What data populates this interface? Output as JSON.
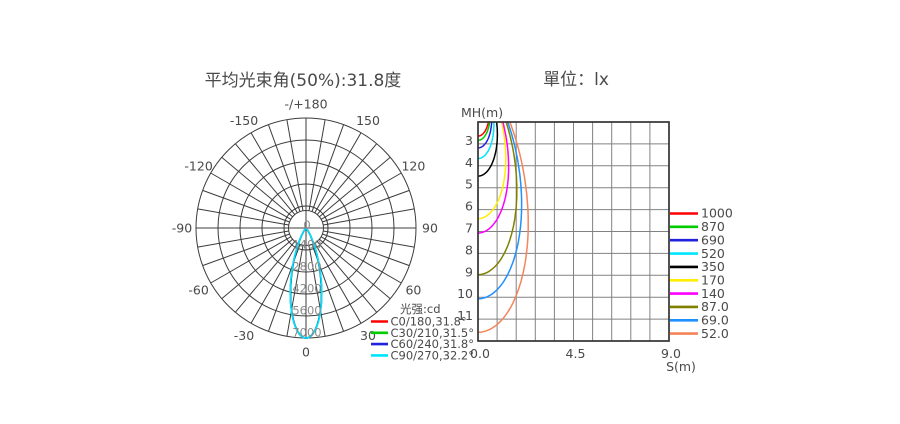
{
  "chart_data": [
    {
      "type": "line",
      "subtype": "polar-luminous-intensity-distribution",
      "title": "平均光束角(50%):31.8度",
      "units": "cd",
      "legend_title": "光强:cd",
      "radial_axis": {
        "max": 7000,
        "ticks": [
          0,
          1400,
          2800,
          4200,
          5600,
          7000
        ],
        "tick_labels": [
          "0",
          "1400",
          "2800",
          "4200",
          "5600",
          "7000"
        ]
      },
      "angle_ticks": [
        {
          "deg": 0,
          "label": "0"
        },
        {
          "deg": 30,
          "label": "30"
        },
        {
          "deg": 60,
          "label": "60"
        },
        {
          "deg": 90,
          "label": "90"
        },
        {
          "deg": 120,
          "label": "120"
        },
        {
          "deg": 150,
          "label": "150"
        },
        {
          "deg": 180,
          "label": "-/+180"
        },
        {
          "deg": -150,
          "label": "-150"
        },
        {
          "deg": -120,
          "label": "-120"
        },
        {
          "deg": -90,
          "label": "-90"
        },
        {
          "deg": -60,
          "label": "-60"
        },
        {
          "deg": -30,
          "label": "-30"
        }
      ],
      "series": [
        {
          "name": "C0/180,31.8°",
          "color": "#ff0000",
          "beam_angle_50_deg": 31.8,
          "peak_cd": 7000
        },
        {
          "name": "C30/210,31.5°",
          "color": "#00cc00",
          "beam_angle_50_deg": 31.5,
          "peak_cd": 7000
        },
        {
          "name": "C60/240,31.8°",
          "color": "#2222dd",
          "beam_angle_50_deg": 31.8,
          "peak_cd": 7000
        },
        {
          "name": "C90/270,32.2°",
          "color": "#00e5ff",
          "beam_angle_50_deg": 32.2,
          "peak_cd": 7000
        }
      ]
    },
    {
      "type": "line",
      "subtype": "isolux-mounting-height-curves",
      "title": "單位：lx",
      "xlabel": "S(m)",
      "ylabel": "MH(m)",
      "xlim": [
        0,
        9
      ],
      "ylim": [
        2,
        12
      ],
      "x_grid_step": 0.9,
      "y_grid_step": 1,
      "peak_cd": 7000,
      "x_tick_labels": [
        {
          "value": 0,
          "label": "0.0"
        },
        {
          "value": 4.5,
          "label": "4.5"
        },
        {
          "value": 9,
          "label": "9.0"
        }
      ],
      "y_tick_labels": [
        {
          "value": 3,
          "label": "3"
        },
        {
          "value": 4,
          "label": "4"
        },
        {
          "value": 5,
          "label": "5"
        },
        {
          "value": 6,
          "label": "6"
        },
        {
          "value": 7,
          "label": "7"
        },
        {
          "value": 8,
          "label": "8"
        },
        {
          "value": 9,
          "label": "9"
        },
        {
          "value": 10,
          "label": "10"
        },
        {
          "value": 11,
          "label": "11"
        }
      ],
      "series": [
        {
          "lux": 1000,
          "label": "1000",
          "color": "#ff0000"
        },
        {
          "lux": 870,
          "label": "870",
          "color": "#00cc00"
        },
        {
          "lux": 690,
          "label": "690",
          "color": "#2222dd"
        },
        {
          "lux": 520,
          "label": "520",
          "color": "#00e5ff"
        },
        {
          "lux": 350,
          "label": "350",
          "color": "#000000"
        },
        {
          "lux": 170,
          "label": "170",
          "color": "#ffee00"
        },
        {
          "lux": 140,
          "label": "140",
          "color": "#ff00ff"
        },
        {
          "lux": 87,
          "label": "87.0",
          "color": "#808000"
        },
        {
          "lux": 69,
          "label": "69.0",
          "color": "#1e90ff"
        },
        {
          "lux": 52,
          "label": "52.0",
          "color": "#f4845a"
        }
      ]
    }
  ]
}
